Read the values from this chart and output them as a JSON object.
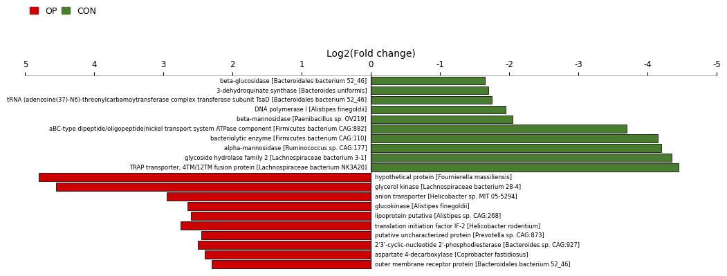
{
  "title": "Log2(Fold change)",
  "xlim_left": 5,
  "xlim_right": -5,
  "xtick_values": [
    5,
    4,
    3,
    2,
    1,
    0,
    -1,
    -2,
    -3,
    -4,
    -5
  ],
  "xtick_labels": [
    "5",
    "4",
    "3",
    "2",
    "1",
    "0",
    "-1",
    "-2",
    "-3",
    "-4",
    "-5"
  ],
  "green_color": "#4a7c2f",
  "red_color": "#cc0000",
  "bar_edgecolor": "#111111",
  "background_color": "#ffffff",
  "label_fontsize": 6.0,
  "tick_fontsize": 8.5,
  "title_fontsize": 10,
  "legend_fontsize": 9,
  "bar_height": 0.82,
  "linewidth": 0.6,
  "categories_con": [
    "beta-glucosidase [Bacteroidales bacterium 52_46]",
    "3-dehydroquinate synthase [Bacteroides uniformis]",
    "tRNA (adenosine(37)-N6)-threonylcarbamoytransferase complex transferase subunit TsaD [Bacteroidales bacterium 52_46]",
    "DNA polymerase I [Alistipes finegoldii]",
    "beta-mannosidase [Paenibacillus sp. OV219]",
    "aBC-type dipeptide/oligopeptide/nickel transport system ATPase component [Firmicutes bacterium CAG:882]",
    "bacteriolytic enzyme [Firmicutes bacterium CAG:110]",
    "alpha-mannosidase [Ruminococcus sp. CAG:177]",
    "glycoside hydrolase family 2 [Lachnospiraceae bacterium 3-1]",
    "TRAP transporter, 4TM/12TM fusion protein [Lachnospiraceae bacterium NK3A20]"
  ],
  "values_con": [
    -1.65,
    -1.7,
    -1.75,
    -1.95,
    -2.05,
    -3.7,
    -4.15,
    -4.2,
    -4.35,
    -4.45
  ],
  "categories_op": [
    "hypothetical protein [Fournierella massiliensis]",
    "glycerol kinase [Lachnospiraceae bacterium 28-4]",
    "anion transporter [Helicobacter sp. MIT 05-5294]",
    "glucokinase [Alistipes finegoldii]",
    "lipoprotein putative [Alistipes sp. CAG:268]",
    "translation initiation factor IF-2 [Helicobacter rodentium]",
    "putative uncharacterized protein [Prevotella sp. CAG:873]",
    "2'3'-cyclic-nucleotide 2'-phosphodiesterase [Bacteroides sp. CAG:927]",
    "aspartate 4-decarboxylase [Coprobacter fastidiosus]",
    "outer membrane receptor protein [Bacteroidales bacterium 52_46]"
  ],
  "values_op": [
    4.8,
    4.55,
    2.95,
    2.65,
    2.6,
    2.75,
    2.45,
    2.5,
    2.4,
    2.3
  ]
}
